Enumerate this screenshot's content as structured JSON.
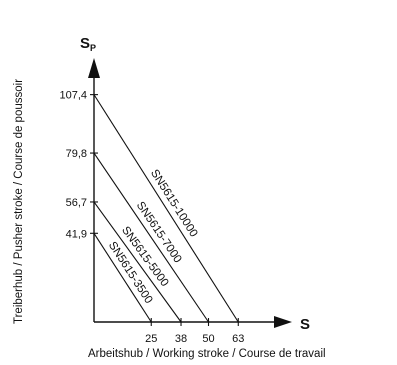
{
  "chart_data": {
    "type": "line",
    "title": "",
    "x_symbol": "S",
    "y_symbol_main": "S",
    "y_symbol_sub": "P",
    "xlabel": "Arbeitshub / Working stroke / Course de travail",
    "ylabel": "Treiberhub / Pusher stroke / Course de poussoir",
    "x_ticks": [
      "25",
      "38",
      "50",
      "63"
    ],
    "y_ticks": [
      "41,9",
      "56,7",
      "79,8",
      "107,4"
    ],
    "series": [
      {
        "name": "SN5615-3500",
        "x": [
          0,
          25
        ],
        "y": [
          41.9,
          0
        ]
      },
      {
        "name": "SN5615-5000",
        "x": [
          0,
          38
        ],
        "y": [
          56.7,
          0
        ]
      },
      {
        "name": "SN5615-7000",
        "x": [
          0,
          50
        ],
        "y": [
          79.8,
          0
        ]
      },
      {
        "name": "SN5615-10000",
        "x": [
          0,
          63
        ],
        "y": [
          107.4,
          0
        ]
      }
    ],
    "grid": false,
    "colors": {
      "line": "#111111"
    }
  }
}
